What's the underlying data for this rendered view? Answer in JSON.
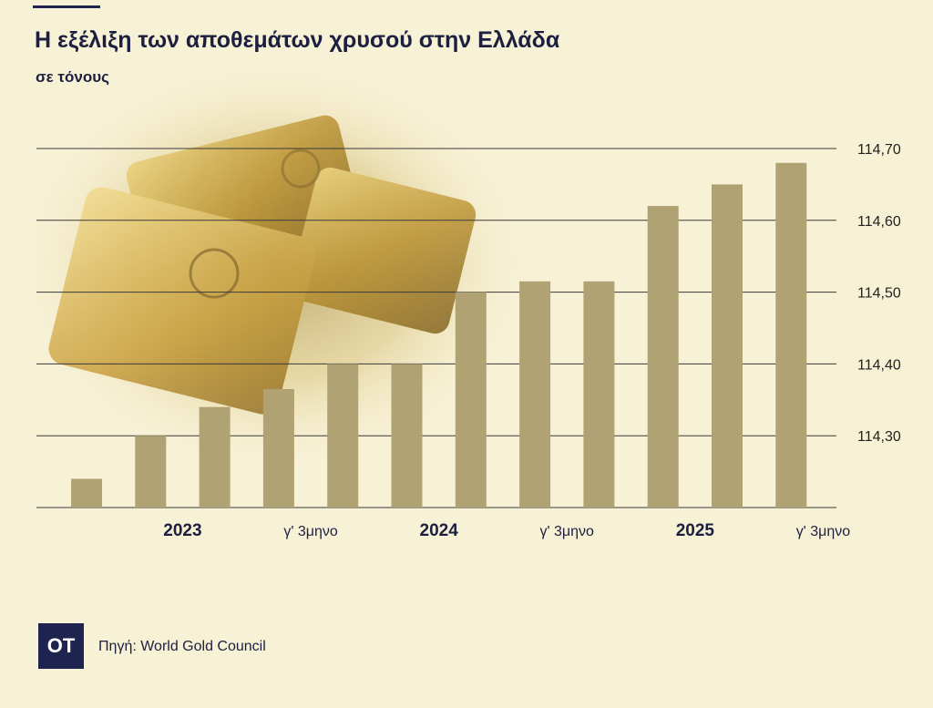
{
  "header": {
    "title": "Η εξέλιξη των αποθεμάτων χρυσού στην Ελλάδα",
    "subtitle": "σε τόνους"
  },
  "chart_data": {
    "type": "bar",
    "title": "Η εξέλιξη των αποθεμάτων χρυσού στην Ελλάδα",
    "subtitle": "σε τόνους",
    "xlabel": "",
    "ylabel": "",
    "ylim": [
      114.2,
      114.7
    ],
    "yticks": [
      114.3,
      114.4,
      114.5,
      114.6,
      114.7
    ],
    "ytick_labels": [
      "114,30",
      "114,40",
      "114,50",
      "114,60",
      "114,70"
    ],
    "y_axis_position": "right",
    "grid": true,
    "values": [
      114.24,
      114.3,
      114.34,
      114.365,
      114.4,
      114.4,
      114.5,
      114.515,
      114.515,
      114.62,
      114.65,
      114.68
    ],
    "bar_color": "#b1a274",
    "x_labels": [
      {
        "index": 1.5,
        "text": "2023",
        "bold": true
      },
      {
        "index": 3.5,
        "text": "γ' 3μηνο",
        "bold": false
      },
      {
        "index": 5.5,
        "text": "2024",
        "bold": true
      },
      {
        "index": 7.5,
        "text": "γ' 3μηνο",
        "bold": false
      },
      {
        "index": 9.5,
        "text": "2025",
        "bold": true
      },
      {
        "index": 11.5,
        "text": "γ' 3μηνο",
        "bold": false
      }
    ]
  },
  "footer": {
    "logo": "OT",
    "source": "Πηγή: World Gold Council"
  }
}
